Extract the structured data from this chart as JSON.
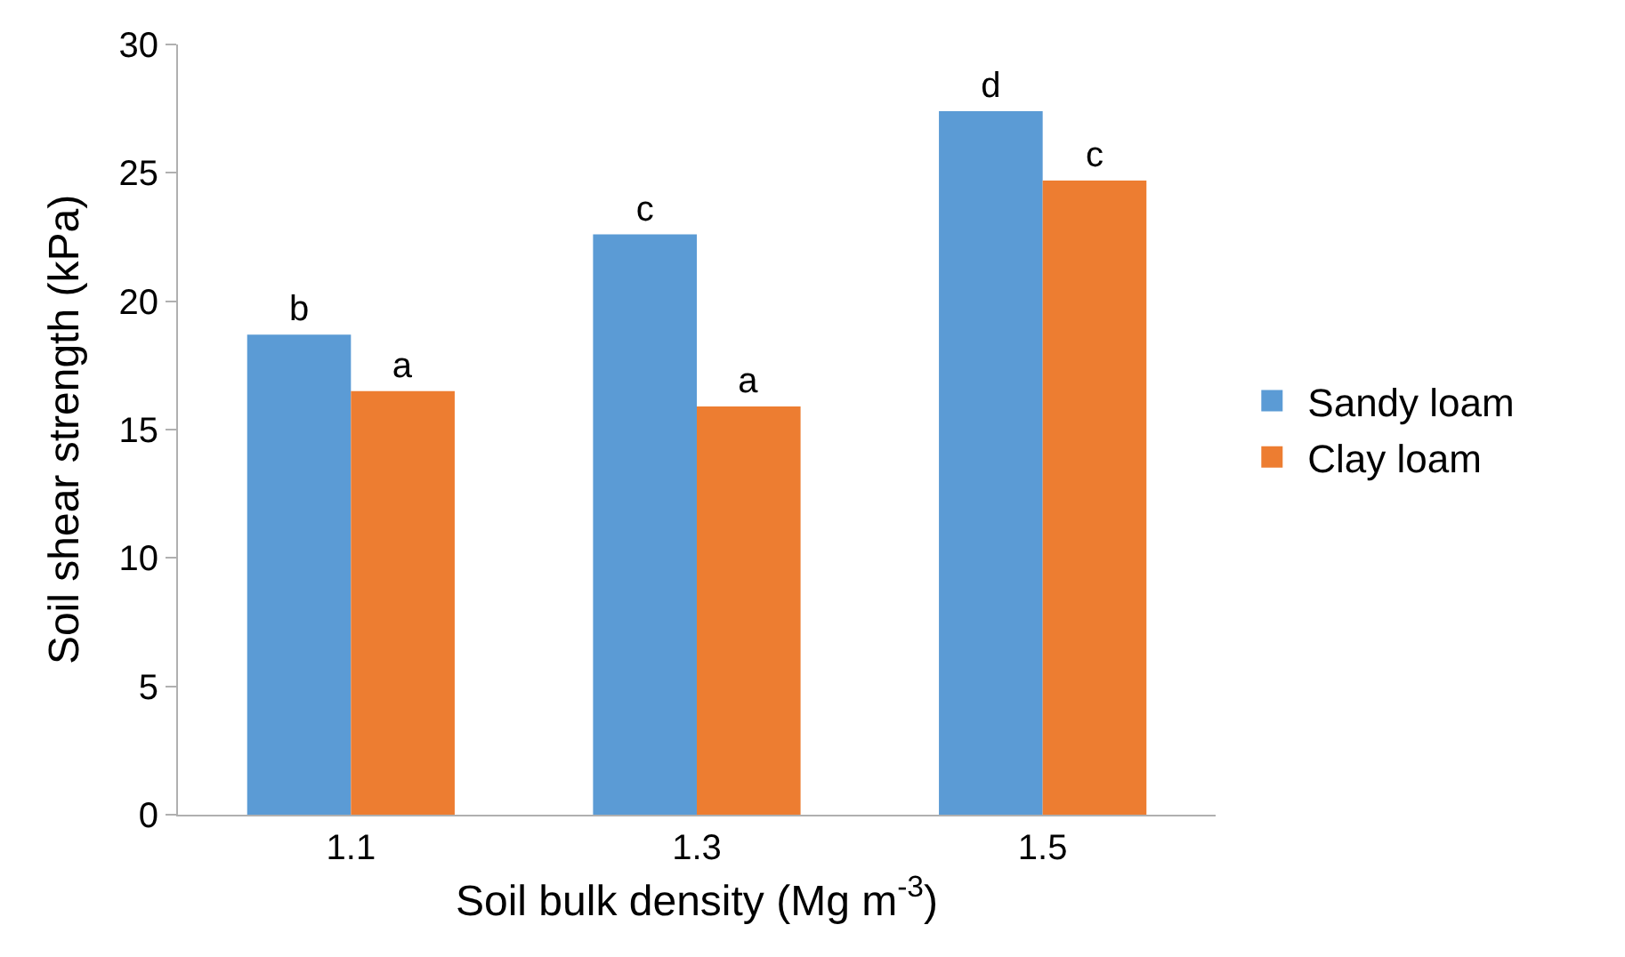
{
  "chart_data": {
    "type": "bar",
    "xlabel": "Soil bulk density (Mg m$^{-3}$)",
    "ylabel": "Soil shear strength (kPa)",
    "categories": [
      "1.1",
      "1.3",
      "1.5"
    ],
    "series": [
      {
        "name": "Sandy loam",
        "color": "#5b9bd5",
        "values": [
          18.7,
          22.6,
          27.4
        ],
        "value_labels": [
          "b",
          "c",
          "d"
        ]
      },
      {
        "name": "Clay loam",
        "color": "#ed7d31",
        "values": [
          16.5,
          15.9,
          24.7
        ],
        "value_labels": [
          "a",
          "a",
          "c"
        ]
      }
    ],
    "ylim": [
      0,
      30
    ],
    "yticks": [
      0,
      5,
      10,
      15,
      20,
      25,
      30
    ],
    "grid": false,
    "legend": "right"
  }
}
